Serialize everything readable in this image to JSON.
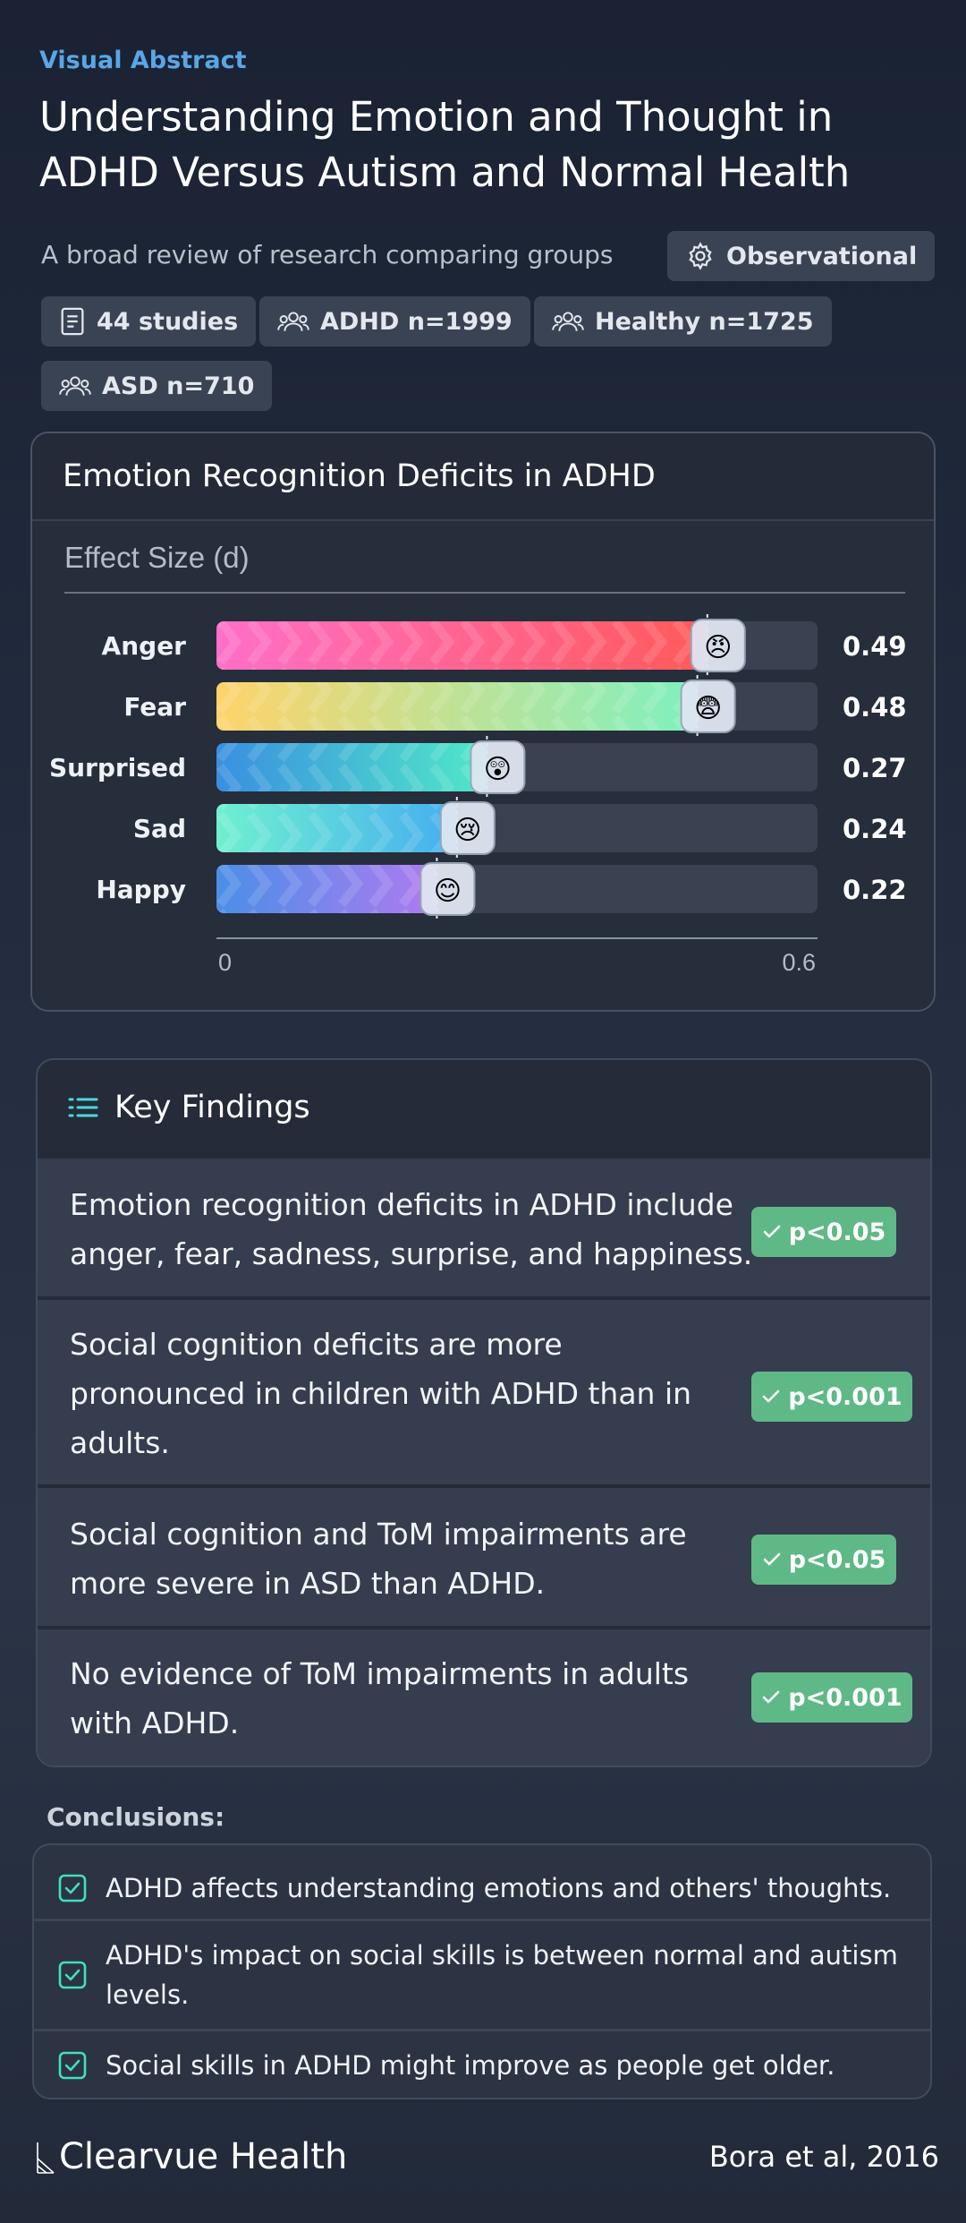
{
  "header": {
    "eyebrow": "Visual Abstract",
    "title_line1": "Understanding Emotion and Thought in",
    "title_line2": "ADHD Versus Autism and Normal Health",
    "subtitle": "A broad review of research comparing groups"
  },
  "chips": {
    "design": {
      "label": "Observational",
      "icon": "gear-icon"
    },
    "studies": {
      "label": "44 studies",
      "icon": "document-icon"
    },
    "adhd": {
      "label": "ADHD n=1999",
      "icon": "people-icon"
    },
    "healthy": {
      "label": "Healthy n=1725",
      "icon": "people-icon"
    },
    "asd": {
      "label": "ASD n=710",
      "icon": "people-icon"
    }
  },
  "chart_card": {
    "title": "Emotion Recognition Deficits in ADHD"
  },
  "chart_data": {
    "type": "bar",
    "orientation": "horizontal",
    "title": "Effect Size (d)",
    "categories": [
      "Anger",
      "Fear",
      "Surprised",
      "Sad",
      "Happy"
    ],
    "values": [
      0.49,
      0.48,
      0.27,
      0.24,
      0.22
    ],
    "value_labels": [
      "0.49",
      "0.48",
      "0.27",
      "0.24",
      "0.22"
    ],
    "emojis": [
      "😠",
      "😨",
      "😲",
      "😢",
      "😊"
    ],
    "xlim": [
      0,
      0.6
    ],
    "xticks": [
      "0",
      "0.6"
    ],
    "gradients": [
      [
        "#ff6fc8",
        "#ff5a5a"
      ],
      [
        "#ffd36a",
        "#7ff0c0"
      ],
      [
        "#3a8fe0",
        "#50e8c8"
      ],
      [
        "#6ff0d0",
        "#45aef0"
      ],
      [
        "#4a8fe6",
        "#b07af0"
      ]
    ],
    "track_color": "#3a4252"
  },
  "findings": {
    "title": "Key Findings",
    "icon": "list-icon",
    "rows": [
      {
        "line1": "Emotion recognition deficits in ADHD include",
        "line2": "anger, fear, sadness, surprise, and happiness.",
        "line3": "",
        "p": "p<0.05"
      },
      {
        "line1": "Social cognition deficits are more",
        "line2": "pronounced in children with ADHD than in",
        "line3": "adults.",
        "p": "p<0.001"
      },
      {
        "line1": "Social cognition and ToM impairments are",
        "line2": "more severe in ASD than ADHD.",
        "line3": "",
        "p": "p<0.05"
      },
      {
        "line1": "No evidence of ToM impairments in adults",
        "line2": "with ADHD.",
        "line3": "",
        "p": "p<0.001"
      }
    ]
  },
  "conclusions": {
    "label": "Conclusions:",
    "items": [
      {
        "line1": "ADHD affects understanding emotions and others' thoughts.",
        "line2": ""
      },
      {
        "line1": "ADHD's impact on social skills is between normal and autism",
        "line2": "levels."
      },
      {
        "line1": "Social skills in ADHD might improve as people get older.",
        "line2": ""
      }
    ]
  },
  "footer": {
    "brand": "Clearvue Health",
    "citation": "Bora et al, 2016"
  },
  "colors": {
    "accent": "#5aa6e6",
    "badge_green": "#5fb986",
    "check_teal": "#3fe0c0"
  }
}
